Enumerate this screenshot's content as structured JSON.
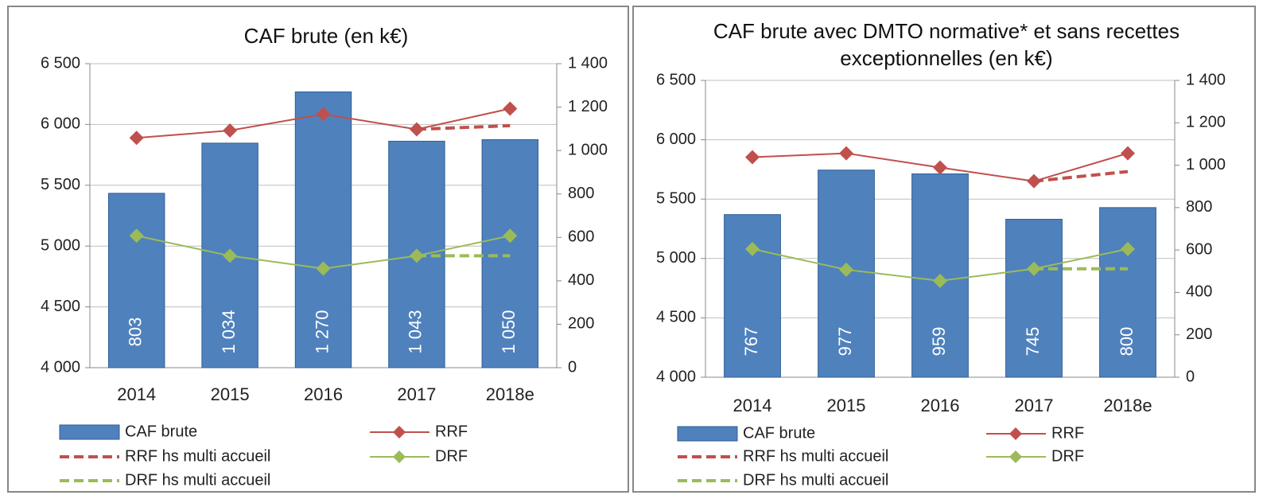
{
  "chart_data": [
    {
      "type": "bar_line",
      "title": "CAF brute  (en k€)",
      "categories": [
        "2014",
        "2015",
        "2016",
        "2017",
        "2018e"
      ],
      "series": [
        {
          "name": "CAF brute",
          "kind": "bar",
          "axis": "y2",
          "color": "#4f81bd",
          "values": [
            803,
            1034,
            1270,
            1043,
            1050
          ],
          "value_labels": [
            "803",
            "1 034",
            "1 270",
            "1 043",
            "1 050"
          ]
        },
        {
          "name": "RRF",
          "kind": "line",
          "marker": true,
          "color": "#c0504d",
          "values": [
            5890,
            5950,
            6085,
            5960,
            6130
          ]
        },
        {
          "name": "RRF hs multi accueil",
          "kind": "line",
          "dashed": true,
          "color": "#c0504d",
          "values": [
            null,
            null,
            null,
            5960,
            5990
          ]
        },
        {
          "name": "DRF",
          "kind": "line",
          "marker": true,
          "color": "#9bbb59",
          "values": [
            5085,
            4920,
            4815,
            4920,
            5085
          ]
        },
        {
          "name": "DRF hs multi accueil",
          "kind": "line",
          "dashed": true,
          "color": "#9bbb59",
          "values": [
            null,
            null,
            null,
            4920,
            4920
          ]
        }
      ],
      "ylim": [
        4000,
        6500
      ],
      "yticks": [
        {
          "value": 4000,
          "label": "4 000"
        },
        {
          "value": 4500,
          "label": "4 500"
        },
        {
          "value": 5000,
          "label": "5 000"
        },
        {
          "value": 5500,
          "label": "5 500"
        },
        {
          "value": 6000,
          "label": "6 000"
        },
        {
          "value": 6500,
          "label": "6 500"
        }
      ],
      "y2lim": [
        0,
        1400
      ],
      "y2ticks": [
        0,
        200,
        400,
        600,
        800,
        {
          "value": 1000,
          "label": "1 000"
        },
        {
          "value": 1200,
          "label": "1 200"
        },
        {
          "value": 1400,
          "label": "1 400"
        }
      ],
      "grid": true
    },
    {
      "type": "bar_line",
      "title": "CAF brute avec DMTO normative* et sans recettes exceptionnelles  (en k€)",
      "categories": [
        "2014",
        "2015",
        "2016",
        "2017",
        "2018e"
      ],
      "series": [
        {
          "name": "CAF brute",
          "kind": "bar",
          "axis": "y2",
          "color": "#4f81bd",
          "values": [
            767,
            977,
            959,
            745,
            800
          ]
        },
        {
          "name": "RRF",
          "kind": "line",
          "marker": true,
          "color": "#c0504d",
          "values": [
            5853,
            5886,
            5766,
            5651,
            5886
          ]
        },
        {
          "name": "RRF hs multi accueil",
          "kind": "line",
          "dashed": true,
          "color": "#c0504d",
          "values": [
            null,
            null,
            null,
            5651,
            5732
          ]
        },
        {
          "name": "DRF",
          "kind": "line",
          "marker": true,
          "color": "#9bbb59",
          "values": [
            5080,
            4906,
            4812,
            4913,
            5080
          ]
        },
        {
          "name": "DRF hs multi accueil",
          "kind": "line",
          "dashed": true,
          "color": "#9bbb59",
          "values": [
            null,
            null,
            null,
            4913,
            4913
          ]
        }
      ],
      "ylim": [
        4000,
        6500
      ],
      "yticks": [
        {
          "value": 4000,
          "label": "4 000"
        },
        {
          "value": 4500,
          "label": "4 500"
        },
        {
          "value": 5000,
          "label": "5 000"
        },
        {
          "value": 5500,
          "label": "5 500"
        },
        {
          "value": 6000,
          "label": "6 000"
        },
        {
          "value": 6500,
          "label": "6 500"
        }
      ],
      "y2lim": [
        0,
        1400
      ],
      "y2ticks": [
        0,
        200,
        400,
        600,
        800,
        {
          "value": 1000,
          "label": "1 000"
        },
        {
          "value": 1200,
          "label": "1 200"
        },
        {
          "value": 1400,
          "label": "1 400"
        }
      ],
      "grid": true
    }
  ]
}
